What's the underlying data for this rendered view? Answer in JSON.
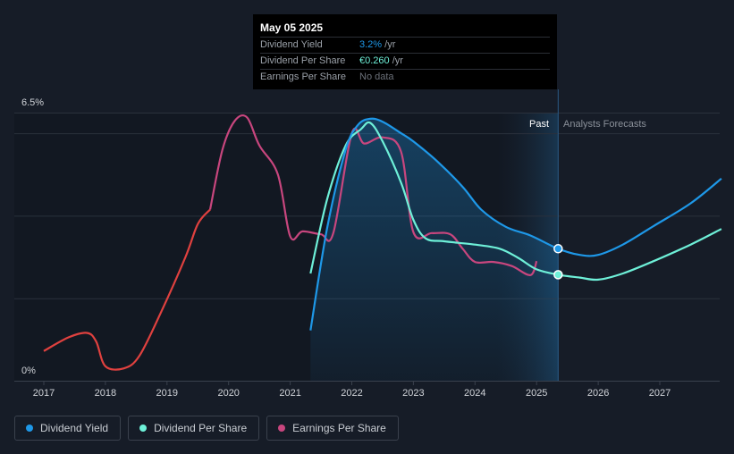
{
  "tooltip": {
    "date": "May 05 2025",
    "rows": [
      {
        "label": "Dividend Yield",
        "value": "3.2%",
        "unit": " /yr"
      },
      {
        "label": "Dividend Per Share",
        "value": "€0.260",
        "unit": " /yr"
      },
      {
        "label": "Earnings Per Share",
        "value": "No data",
        "unit": ""
      }
    ]
  },
  "legend": [
    {
      "label": "Dividend Yield",
      "color": "#1e98e8"
    },
    {
      "label": "Dividend Per Share",
      "color": "#6ef0d8"
    },
    {
      "label": "Earnings Per Share",
      "color": "#c8467e"
    }
  ],
  "chart_data": {
    "type": "line",
    "y_tick_labels": [
      "6.5%",
      "0%"
    ],
    "ylim": [
      0,
      6.5
    ],
    "xlim": [
      2016.5,
      2028
    ],
    "x_ticks": [
      "2017",
      "2018",
      "2019",
      "2020",
      "2021",
      "2022",
      "2023",
      "2024",
      "2025",
      "2026",
      "2027"
    ],
    "past_label": "Past",
    "forecast_label": "Analysts Forecasts",
    "past_region": [
      2024.35,
      2025.35
    ],
    "divider_x": 2025.35,
    "grid": true,
    "series": [
      {
        "name": "Dividend Yield",
        "color": "#1e98e8",
        "unit": "%",
        "area_fill": true,
        "marker_at": 2025.35,
        "points": [
          [
            2021.33,
            1.22
          ],
          [
            2021.6,
            3.7
          ],
          [
            2021.9,
            5.6
          ],
          [
            2022.1,
            6.2
          ],
          [
            2022.3,
            6.35
          ],
          [
            2022.5,
            6.28
          ],
          [
            2022.8,
            6.0
          ],
          [
            2023.0,
            5.8
          ],
          [
            2023.4,
            5.3
          ],
          [
            2023.8,
            4.7
          ],
          [
            2024.1,
            4.15
          ],
          [
            2024.5,
            3.73
          ],
          [
            2024.9,
            3.52
          ],
          [
            2025.35,
            3.2
          ],
          [
            2025.7,
            3.05
          ],
          [
            2026.0,
            3.05
          ],
          [
            2026.4,
            3.3
          ],
          [
            2026.9,
            3.75
          ],
          [
            2027.5,
            4.3
          ],
          [
            2028.0,
            4.9
          ]
        ]
      },
      {
        "name": "Dividend Per Share",
        "color": "#6ef0d8",
        "unit": "",
        "marker_at": 2025.35,
        "points": [
          [
            2021.33,
            2.6
          ],
          [
            2021.6,
            4.4
          ],
          [
            2021.9,
            5.7
          ],
          [
            2022.15,
            6.1
          ],
          [
            2022.3,
            6.25
          ],
          [
            2022.5,
            5.8
          ],
          [
            2022.8,
            4.8
          ],
          [
            2023.0,
            3.9
          ],
          [
            2023.2,
            3.45
          ],
          [
            2023.5,
            3.38
          ],
          [
            2024.0,
            3.3
          ],
          [
            2024.4,
            3.2
          ],
          [
            2024.7,
            2.98
          ],
          [
            2025.0,
            2.7
          ],
          [
            2025.35,
            2.57
          ],
          [
            2025.7,
            2.5
          ],
          [
            2026.0,
            2.45
          ],
          [
            2026.4,
            2.6
          ],
          [
            2026.9,
            2.9
          ],
          [
            2027.5,
            3.3
          ],
          [
            2028.0,
            3.68
          ]
        ]
      },
      {
        "name": "Earnings Per Share",
        "color_past_early": "#e0413f",
        "color": "#c8467e",
        "color_switch_x": 2019.7,
        "points": [
          [
            2017.0,
            0.72
          ],
          [
            2017.4,
            1.05
          ],
          [
            2017.7,
            1.16
          ],
          [
            2017.85,
            0.95
          ],
          [
            2018.0,
            0.35
          ],
          [
            2018.3,
            0.3
          ],
          [
            2018.55,
            0.6
          ],
          [
            2018.9,
            1.65
          ],
          [
            2019.3,
            3.0
          ],
          [
            2019.5,
            3.8
          ],
          [
            2019.7,
            4.15
          ],
          [
            2019.9,
            5.6
          ],
          [
            2020.1,
            6.3
          ],
          [
            2020.3,
            6.38
          ],
          [
            2020.5,
            5.7
          ],
          [
            2020.8,
            5.0
          ],
          [
            2021.0,
            3.5
          ],
          [
            2021.2,
            3.62
          ],
          [
            2021.5,
            3.55
          ],
          [
            2021.7,
            3.58
          ],
          [
            2022.0,
            6.0
          ],
          [
            2022.2,
            5.75
          ],
          [
            2022.5,
            5.9
          ],
          [
            2022.8,
            5.55
          ],
          [
            2023.0,
            3.6
          ],
          [
            2023.3,
            3.58
          ],
          [
            2023.6,
            3.55
          ],
          [
            2023.8,
            3.2
          ],
          [
            2024.0,
            2.88
          ],
          [
            2024.3,
            2.88
          ],
          [
            2024.6,
            2.78
          ],
          [
            2024.9,
            2.56
          ],
          [
            2025.0,
            2.9
          ]
        ]
      }
    ]
  }
}
